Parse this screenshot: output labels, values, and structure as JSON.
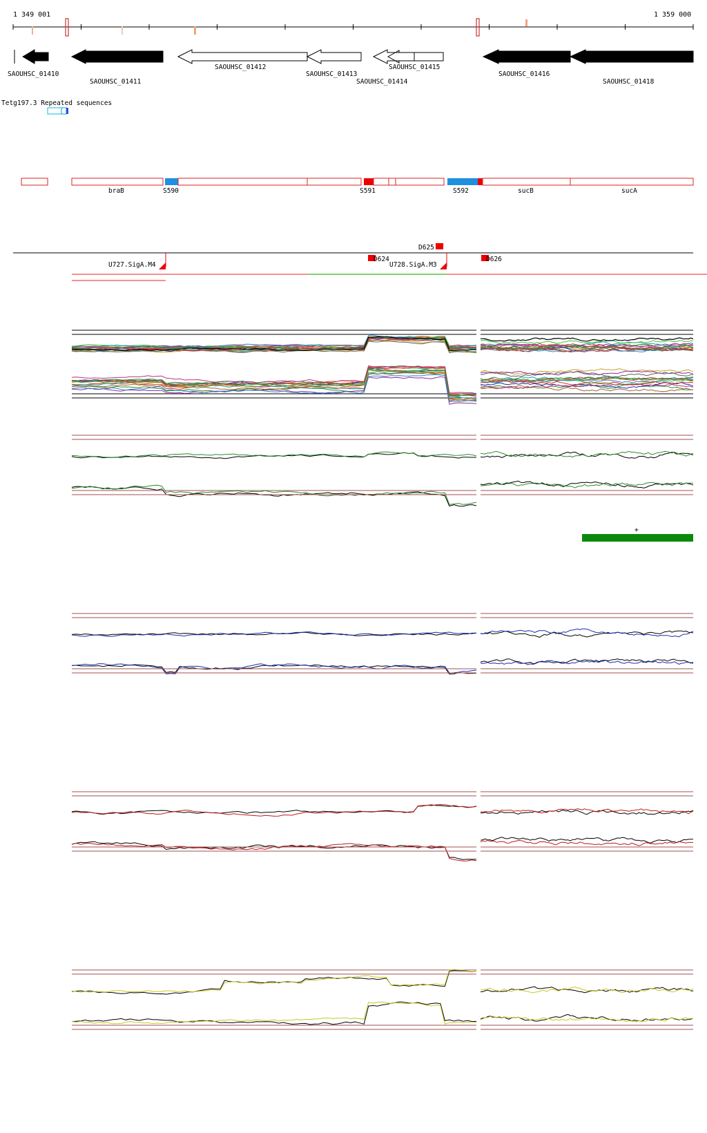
{
  "coordinates": {
    "start": "1 349 001",
    "end": "1 359 000"
  },
  "genes": [
    {
      "name": "SAOUHSC_01410",
      "strand": "-",
      "fill": "#000000"
    },
    {
      "name": "SAOUHSC_01411",
      "strand": "-",
      "fill": "#000000"
    },
    {
      "name": "SAOUHSC_01412",
      "strand": "-",
      "fill": "#ffffff"
    },
    {
      "name": "SAOUHSC_01413",
      "strand": "-",
      "fill": "#ffffff"
    },
    {
      "name": "SAOUHSC_01414",
      "strand": "-",
      "fill": "#ffffff"
    },
    {
      "name": "SAOUHSC_01415",
      "strand": "-",
      "fill": "#ffffff"
    },
    {
      "name": "SAOUHSC_01416",
      "strand": "-",
      "fill": "#000000"
    },
    {
      "name": "SAOUHSC_01418",
      "strand": "-",
      "fill": "#000000"
    }
  ],
  "repeat_track": {
    "label": "Tetg197.3 Repeated sequences"
  },
  "segments": [
    {
      "label": "braB"
    },
    {
      "label": "S590"
    },
    {
      "label": "S591"
    },
    {
      "label": "S592"
    },
    {
      "label": "sucB"
    },
    {
      "label": "sucA"
    }
  ],
  "features": [
    {
      "label": "D625"
    },
    {
      "label": "D624"
    },
    {
      "label": "D626"
    },
    {
      "label": "U727.SigA.M4"
    },
    {
      "label": "U728.SigA.M3"
    }
  ],
  "green_block": {
    "marker": "+"
  },
  "colors": {
    "segment_border": "#dd2222",
    "feature_red": "#ee0000",
    "s_blue": "#1e90e0",
    "repeat_cyan": "#00c0e0",
    "green_bar": "#0a8a0a",
    "panel2_series": "#2a8a2a",
    "panel3_series": "#1a2aa8",
    "panel4_series": "#c01818",
    "panel5_series": "#c8c820",
    "ref_line": "#a05050"
  }
}
